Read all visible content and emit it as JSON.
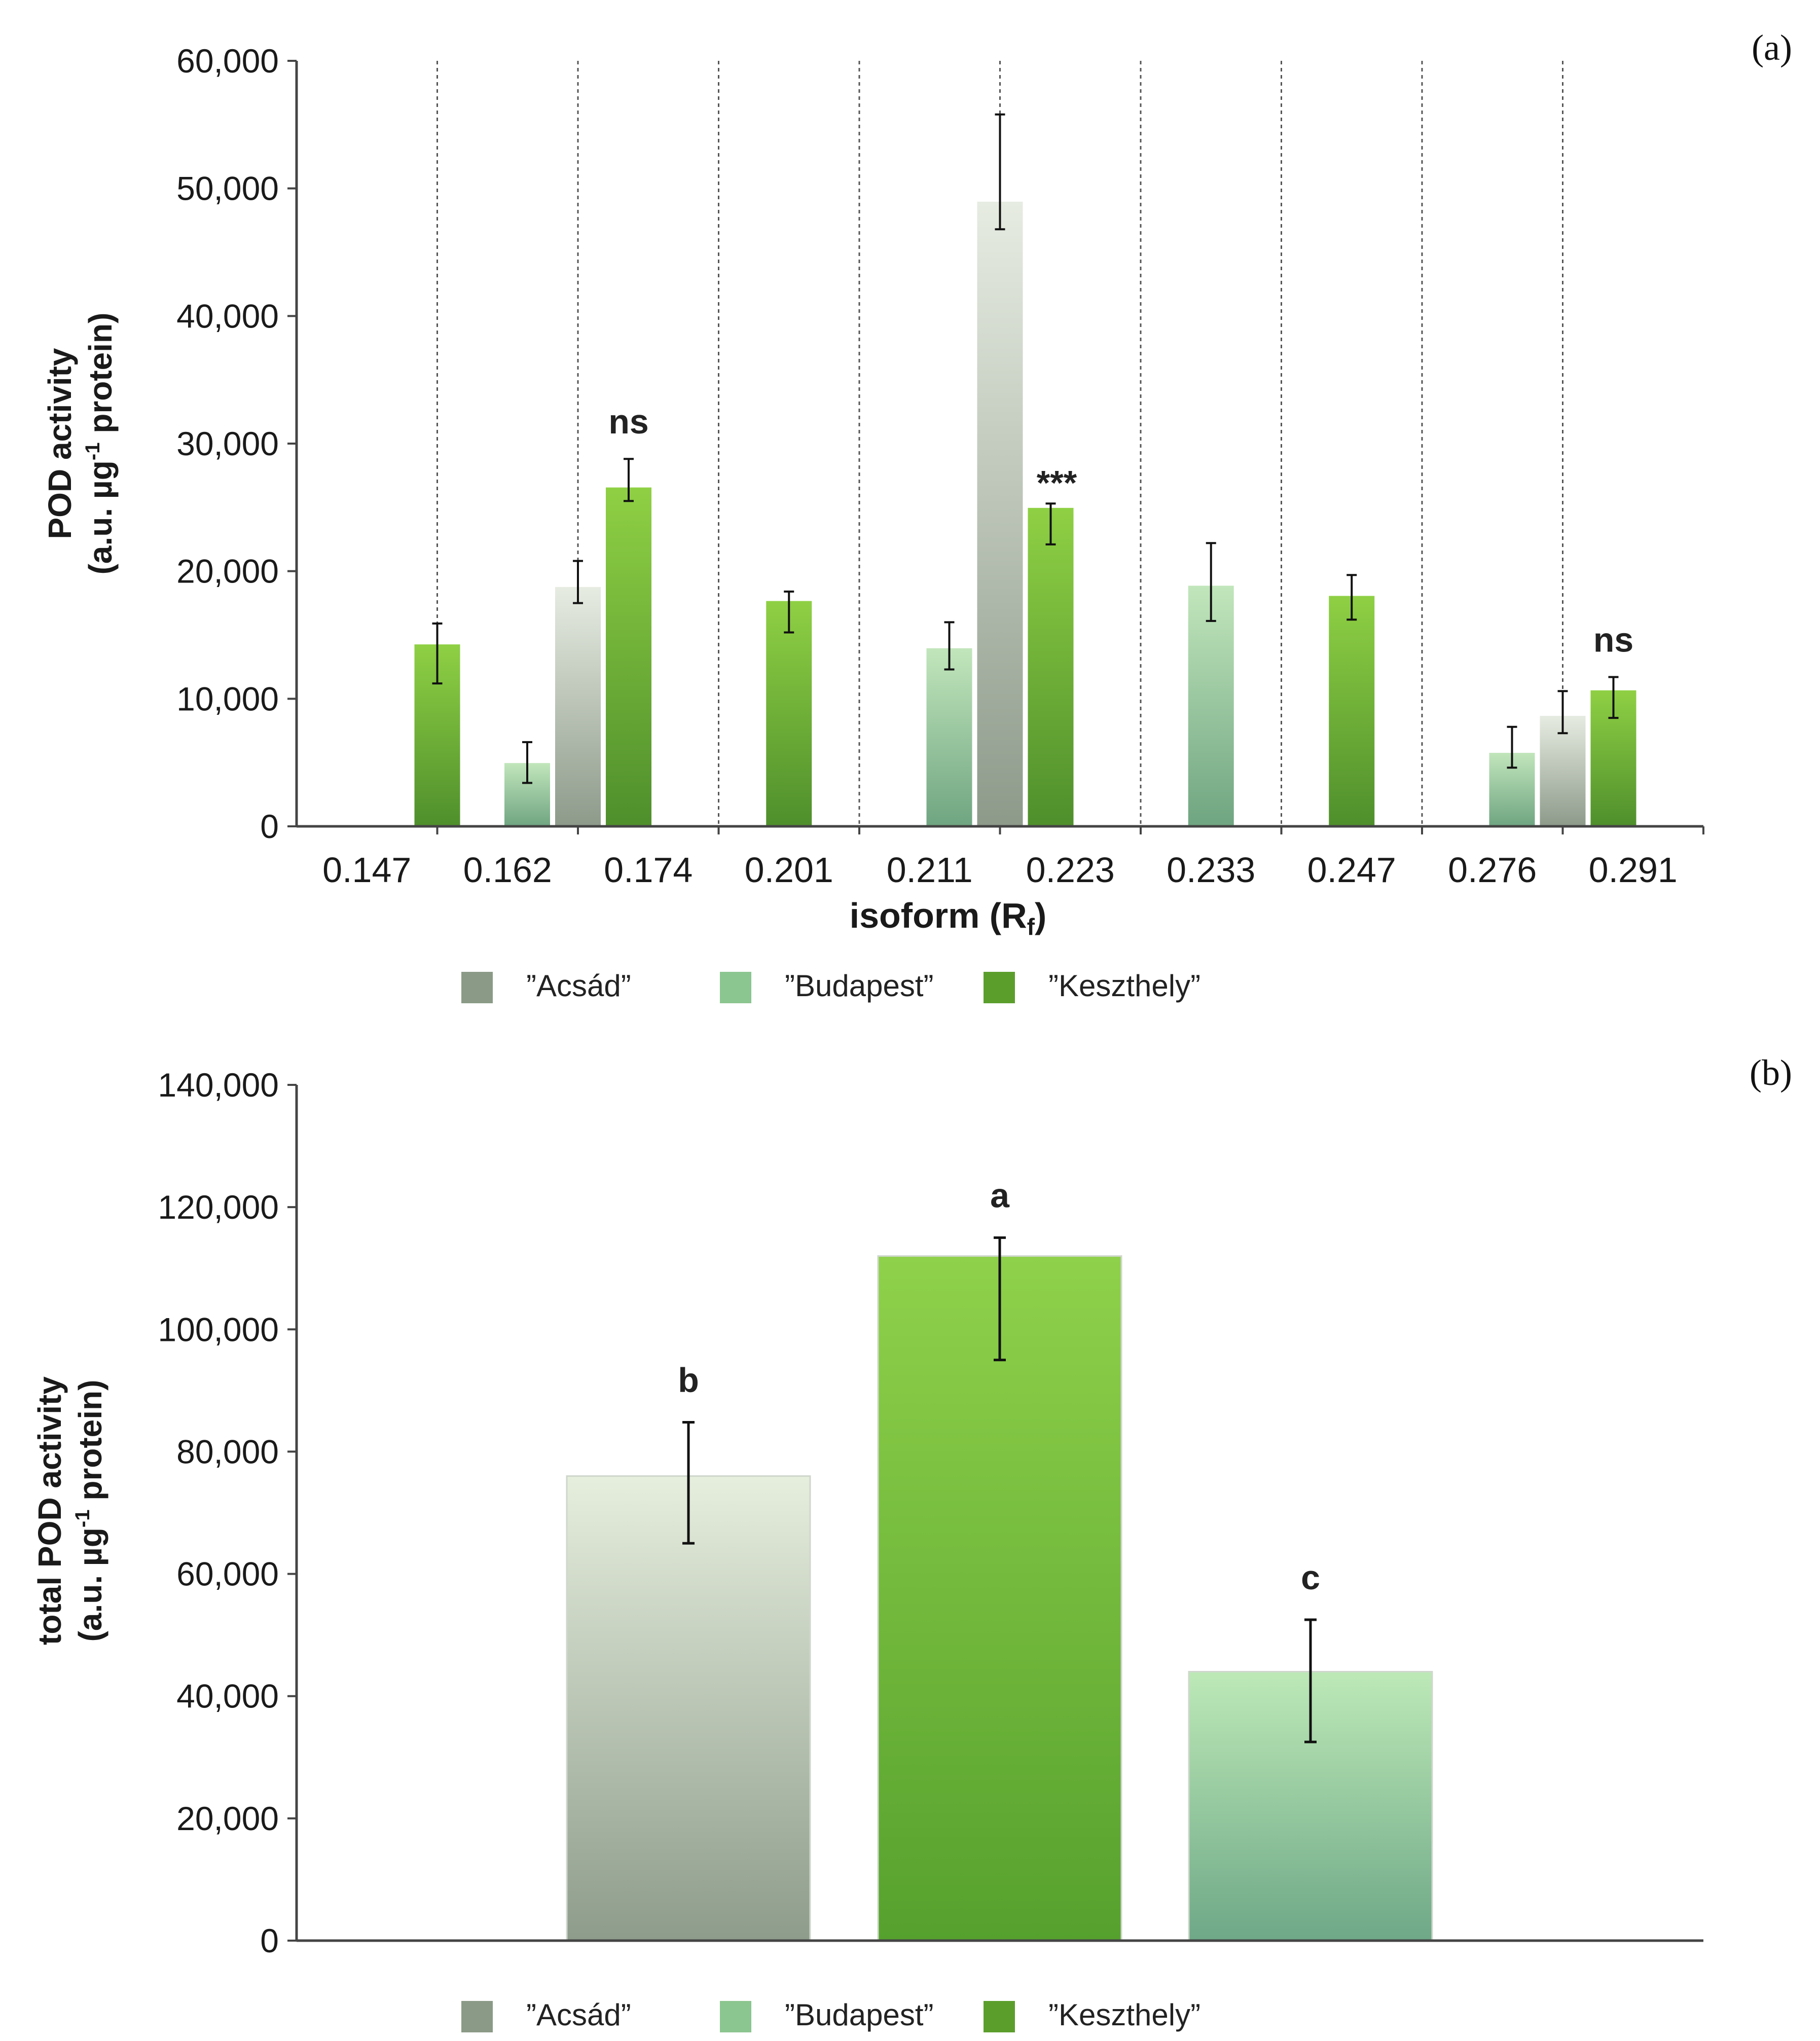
{
  "chart_data": [
    {
      "type": "bar",
      "panel_label": "(a)",
      "xlabel": "isoform (R",
      "xlabel_subscript": "f",
      "xlabel_close": ")",
      "ylabel_line1": "POD activity",
      "ylabel_line2_pre": "(a.u. µg",
      "ylabel_line2_sup": "-1",
      "ylabel_line2_post": " protein)",
      "ylim": [
        0,
        60000
      ],
      "yticks": [
        "0",
        "10,000",
        "20,000",
        "30,000",
        "40,000",
        "50,000",
        "60,000"
      ],
      "ytick_values": [
        0,
        10000,
        20000,
        30000,
        40000,
        50000,
        60000
      ],
      "categories": [
        "0.147",
        "0.162",
        "0.174",
        "0.201",
        "0.211",
        "0.223",
        "0.233",
        "0.247",
        "0.276",
        "0.291"
      ],
      "groups": [
        {
          "label_indices": [
            0,
            1
          ],
          "bars": [
            {
              "series": "Keszthely",
              "value": 14300,
              "err_low": 11200,
              "err_high": 15900
            }
          ]
        },
        {
          "label_indices": [
            1,
            2
          ],
          "bars": [
            {
              "series": "Budapest",
              "value": 5000,
              "err_low": 3400,
              "err_high": 6600
            },
            {
              "series": "Acsád",
              "value": 18800,
              "err_low": 17500,
              "err_high": 20800
            },
            {
              "series": "Keszthely",
              "value": 26600,
              "err_low": 25500,
              "err_high": 28800
            }
          ],
          "significance": "ns"
        },
        {
          "label_indices": [
            3
          ],
          "bars": [
            {
              "series": "Keszthely",
              "value": 17700,
              "err_low": 15200,
              "err_high": 18400
            }
          ]
        },
        {
          "label_indices": [
            4,
            5
          ],
          "bars": [
            {
              "series": "Budapest",
              "value": 14000,
              "err_low": 12300,
              "err_high": 16000
            },
            {
              "series": "Acsád",
              "value": 49000,
              "err_low": 46800,
              "err_high": 55800
            },
            {
              "series": "Keszthely",
              "value": 25000,
              "err_low": 22100,
              "err_high": 25300
            }
          ],
          "significance": "***"
        },
        {
          "label_indices": [
            6
          ],
          "bars": [
            {
              "series": "Budapest",
              "value": 18900,
              "err_low": 16100,
              "err_high": 22200
            }
          ]
        },
        {
          "label_indices": [
            7
          ],
          "bars": [
            {
              "series": "Keszthely",
              "value": 18100,
              "err_low": 16200,
              "err_high": 19700
            }
          ]
        },
        {
          "label_indices": [
            8,
            9
          ],
          "bars": [
            {
              "series": "Budapest",
              "value": 5800,
              "err_low": 4600,
              "err_high": 7800
            },
            {
              "series": "Acsád",
              "value": 8700,
              "err_low": 7300,
              "err_high": 10600
            },
            {
              "series": "Keszthely",
              "value": 10700,
              "err_low": 8500,
              "err_high": 11700
            }
          ],
          "significance": "ns"
        }
      ],
      "legend": [
        "”Acsád”",
        "”Budapest”",
        "”Keszthely”"
      ]
    },
    {
      "type": "bar",
      "panel_label": "(b)",
      "ylabel_line1": "total POD activity",
      "ylabel_line2_pre": "(a.u. µg",
      "ylabel_line2_sup": "-1",
      "ylabel_line2_post": " protein)",
      "ylim": [
        0,
        140000
      ],
      "yticks": [
        "0",
        "20,000",
        "40,000",
        "60,000",
        "80,000",
        "100,000",
        "120,000",
        "140,000"
      ],
      "ytick_values": [
        0,
        20000,
        40000,
        60000,
        80000,
        100000,
        120000,
        140000
      ],
      "bars": [
        {
          "series": "Acsád",
          "value": 76000,
          "err_low": 65000,
          "err_high": 84800,
          "letter": "b"
        },
        {
          "series": "Keszthely",
          "value": 112000,
          "err_low": 95000,
          "err_high": 115000,
          "letter": "a"
        },
        {
          "series": "Budapest",
          "value": 44000,
          "err_low": 32500,
          "err_high": 52500,
          "letter": "c"
        }
      ],
      "legend": [
        "”Acsád”",
        "”Budapest”",
        "”Keszthely”"
      ]
    }
  ],
  "colors": {
    "Acsád": "#8a9a86",
    "Budapest": "#8bc58f",
    "Keszthely": "#5c9e2c",
    "axis": "#444444",
    "divider": "#555555"
  }
}
